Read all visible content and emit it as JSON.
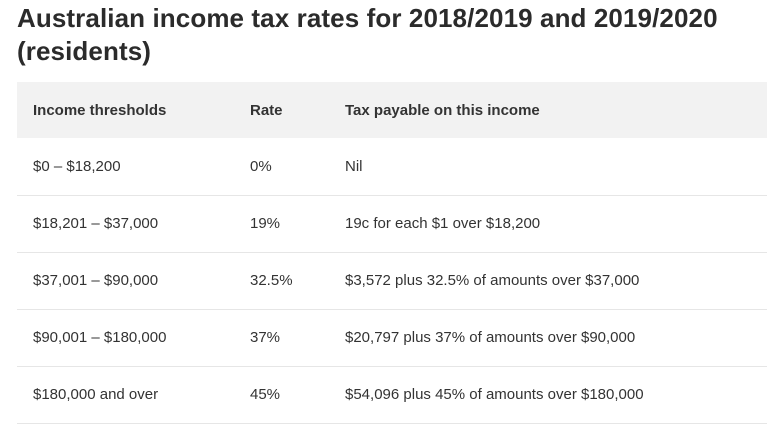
{
  "title": "Australian income tax rates for 2018/2019 and 2019/2020 (residents)",
  "table": {
    "headers": [
      "Income thresholds",
      "Rate",
      "Tax payable on this income"
    ],
    "rows": [
      [
        "$0 – $18,200",
        "0%",
        "Nil"
      ],
      [
        "$18,201 – $37,000",
        "19%",
        "19c for each $1 over $18,200"
      ],
      [
        "$37,001 – $90,000",
        "32.5%",
        "$3,572 plus 32.5% of amounts over $37,000"
      ],
      [
        "$90,001 – $180,000",
        "37%",
        "$20,797 plus 37% of amounts over $90,000"
      ],
      [
        "$180,000 and over",
        "45%",
        "$54,096 plus 45% of amounts over $180,000"
      ]
    ]
  }
}
